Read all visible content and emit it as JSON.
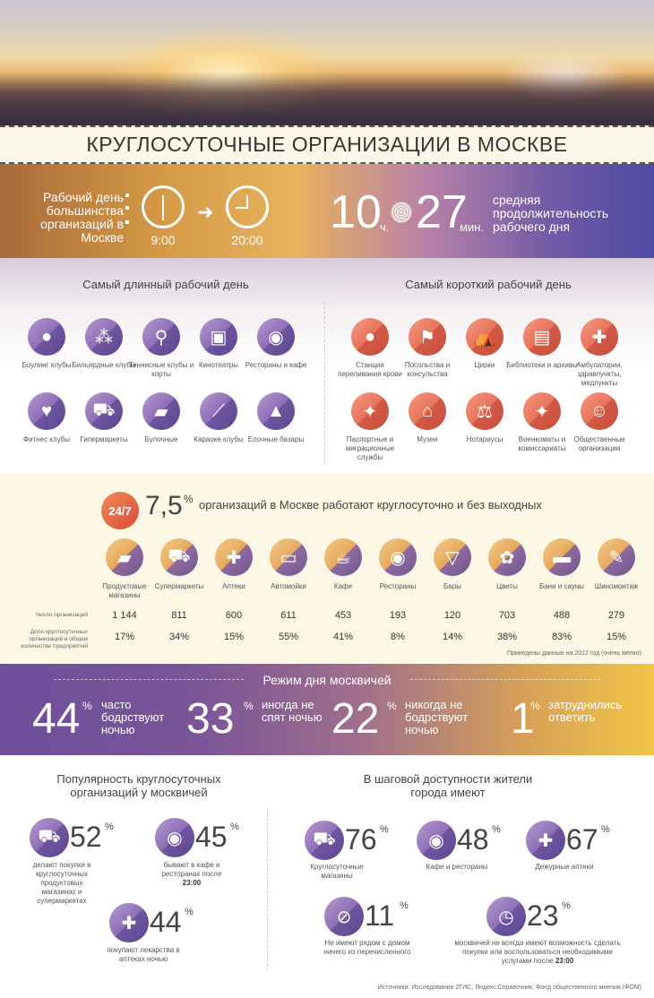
{
  "title": "КРУГЛОСУТОЧНЫЕ ОРГАНИЗАЦИИ В МОСКВЕ",
  "workday": {
    "lead": "Рабочий день большинства организаций в Москве",
    "start": "9:00",
    "end": "20:00",
    "hours": "10",
    "hours_unit": "ч.",
    "minutes": "27",
    "minutes_unit": "мин.",
    "avg_label": "средняя продолжительность рабочего дня"
  },
  "longest": {
    "heading": "Самый длинный рабочий день",
    "items": [
      {
        "label": "Боулинг клубы",
        "icon": "bowling-icon"
      },
      {
        "label": "Бильярдные клубы",
        "icon": "billiards-icon"
      },
      {
        "label": "Теннисные клубы и корты",
        "icon": "tennis-icon"
      },
      {
        "label": "Кинотеатры",
        "icon": "camera-icon"
      },
      {
        "label": "Рестораны и кафе",
        "icon": "plate-icon"
      },
      {
        "label": "Фитнес клубы",
        "icon": "heart-icon"
      },
      {
        "label": "Гипермаркеты",
        "icon": "cart-icon"
      },
      {
        "label": "Булочные",
        "icon": "bread-icon"
      },
      {
        "label": "Караоке клубы",
        "icon": "microphone-icon"
      },
      {
        "label": "Елочные базары",
        "icon": "tree-icon"
      }
    ]
  },
  "shortest": {
    "heading": "Самый короткий рабочий день",
    "items": [
      {
        "label": "Станции переливания крови",
        "icon": "drop-icon"
      },
      {
        "label": "Посольства и консульства",
        "icon": "flag-icon"
      },
      {
        "label": "Цирки",
        "icon": "tent-icon"
      },
      {
        "label": "Библиотеки и архивы",
        "icon": "book-icon"
      },
      {
        "label": "Амбулатории, здравпункты, медпункты",
        "icon": "cross-icon"
      },
      {
        "label": "Паспортные и миграционные службы",
        "icon": "eagle-icon"
      },
      {
        "label": "Музеи",
        "icon": "museum-icon"
      },
      {
        "label": "Нотариусы",
        "icon": "scales-icon"
      },
      {
        "label": "Военкоматы и комиссариаты",
        "icon": "eagle-icon"
      },
      {
        "label": "Общественные организации",
        "icon": "people-icon"
      }
    ]
  },
  "allday": {
    "badge": "24/7",
    "percent": "7,5",
    "pct_sign": "%",
    "text": "организаций в Москве работают круглосуточно и без выходных",
    "row_count_label": "Число организаций",
    "row_share_label": "Доля круглосуточных организаций в общем количестве предприятий",
    "categories": [
      {
        "label": "Продуктовые магазины",
        "icon": "bread-icon",
        "count": "1 144",
        "share": "17%"
      },
      {
        "label": "Супермаркеты",
        "icon": "cart-icon",
        "count": "811",
        "share": "34%"
      },
      {
        "label": "Аптеки",
        "icon": "cross-icon",
        "count": "600",
        "share": "15%"
      },
      {
        "label": "Автомойки",
        "icon": "car-icon",
        "count": "611",
        "share": "55%"
      },
      {
        "label": "Кафе",
        "icon": "cup-icon",
        "count": "453",
        "share": "41%"
      },
      {
        "label": "Рестораны",
        "icon": "plate-icon",
        "count": "193",
        "share": "8%"
      },
      {
        "label": "Бары",
        "icon": "cocktail-icon",
        "count": "120",
        "share": "14%"
      },
      {
        "label": "Цветы",
        "icon": "flower-icon",
        "count": "703",
        "share": "38%"
      },
      {
        "label": "Бани и сауны",
        "icon": "bath-icon",
        "count": "488",
        "share": "83%"
      },
      {
        "label": "Шиномонтаж",
        "icon": "wrench-icon",
        "count": "279",
        "share": "15%"
      }
    ],
    "note": "Приведены данные на 2012 год (очень мелко)"
  },
  "mode": {
    "heading": "Режим дня москвичей",
    "stats": [
      {
        "value": "44",
        "sign": "%",
        "text": "часто бодрствуют ночью"
      },
      {
        "value": "33",
        "sign": "%",
        "text": "иногда не спят ночью"
      },
      {
        "value": "22",
        "sign": "%",
        "text": "никогда не бодрствуют ночью"
      },
      {
        "value": "1",
        "sign": "%",
        "text": "затруднились ответить"
      }
    ]
  },
  "popularity": {
    "heading": "Популярность круглосуточных организаций у москвичей",
    "items": [
      {
        "value": "52",
        "sign": "%",
        "icon": "cart-icon",
        "text": "делают покупки в круглосуточных продуктовых магазинах и супермаркетах"
      },
      {
        "value": "45",
        "sign": "%",
        "icon": "plate-icon",
        "text": "бывают в кафе и ресторанах после",
        "bold": "23:00"
      },
      {
        "value": "44",
        "sign": "%",
        "icon": "cross-icon",
        "text": "покупают лекарства в аптеках ночью"
      }
    ]
  },
  "walking": {
    "heading": "В шаговой доступности жители города имеют",
    "items": [
      {
        "value": "76",
        "sign": "%",
        "icon": "cart-icon",
        "text": "Круглосуточные магазины"
      },
      {
        "value": "48",
        "sign": "%",
        "icon": "plate-icon",
        "text": "Кафе и рестораны"
      },
      {
        "value": "67",
        "sign": "%",
        "icon": "cross-icon",
        "text": "Дежурные аптеки"
      },
      {
        "value": "11",
        "sign": "%",
        "icon": "no-icon",
        "text": "Не имеют рядом с домом ничего из перечисленного"
      },
      {
        "value": "23",
        "sign": "%",
        "icon": "clock-icon",
        "text": "москвичей не всегда имеют возможность сделать покупки или воспользоваться необходимыми услугами после",
        "bold": "23:00"
      }
    ]
  },
  "source": "Источники: Исследование 2ГИС, Яндекс.Справочник, Фонд общественного мнения (ФОМ)",
  "colors": {
    "purple": "#8e6fb6",
    "salmon": "#e8735c",
    "cream": "#fdf7e6"
  }
}
